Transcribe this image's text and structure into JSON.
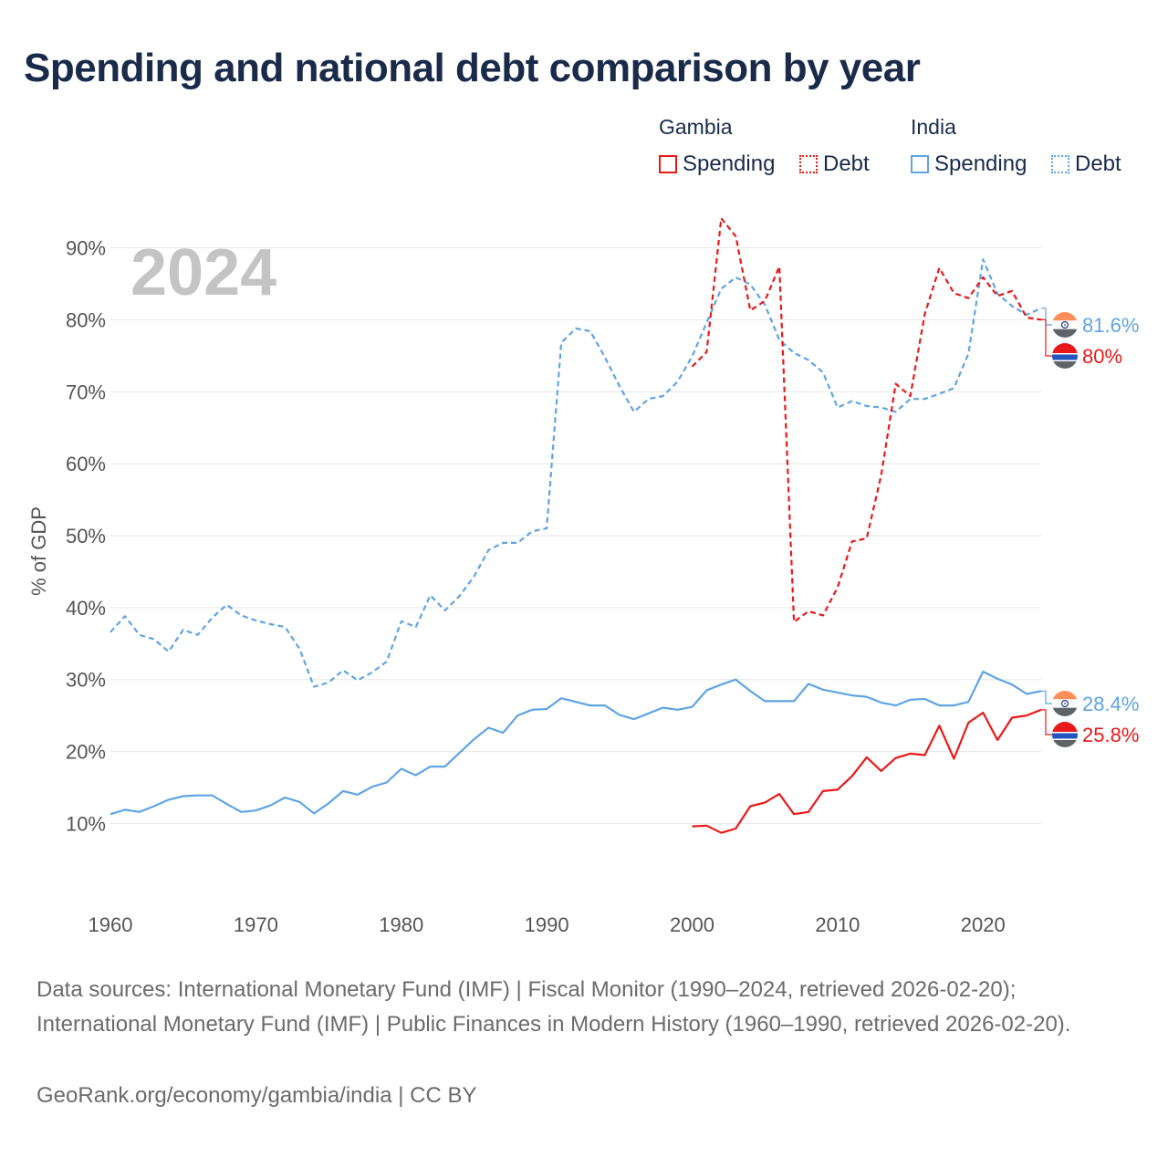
{
  "title": "Spending and national debt comparison by year",
  "legend": {
    "groups": [
      {
        "name": "Gambia",
        "color": "#e8191a",
        "items": [
          "Spending",
          "Debt"
        ]
      },
      {
        "name": "India",
        "color": "#5fa4e3",
        "items": [
          "Spending",
          "Debt"
        ]
      }
    ]
  },
  "year_label": "2024",
  "end_labels": {
    "india_debt": "81.6%",
    "gambia_debt": "80%",
    "india_spending": "28.4%",
    "gambia_spending": "25.8%"
  },
  "footer": {
    "sources": "Data sources: International Monetary Fund (IMF) | Fiscal Monitor (1990–2024, retrieved 2026-02-20); International Monetary Fund (IMF) | Public Finances in Modern History (1960–1990, retrieved 2026-02-20).",
    "attribution": "GeoRank.org/economy/gambia/india | CC BY"
  },
  "colors": {
    "gambia": "#e8191a",
    "india": "#5fa4e3",
    "grid": "#e6e6e6",
    "axis_text": "#555555",
    "year_label": "#c4c4c4"
  },
  "chart_data": {
    "type": "line",
    "title": "Spending and national debt comparison by year",
    "xlabel": "",
    "ylabel": "% of GDP",
    "xlim": [
      1960,
      2024
    ],
    "ylim": [
      2.7,
      94
    ],
    "xticks": [
      1960,
      1970,
      1980,
      1990,
      2000,
      2010,
      2020
    ],
    "yticks": [
      10,
      20,
      30,
      40,
      50,
      60,
      70,
      80,
      90
    ],
    "ytick_labels": [
      "10%",
      "20%",
      "30%",
      "40%",
      "50%",
      "60%",
      "70%",
      "80%",
      "90%"
    ],
    "series": [
      {
        "name": "India Debt",
        "country": "India",
        "kind": "Debt",
        "style": "dashed",
        "x": [
          1960,
          1961,
          1962,
          1963,
          1964,
          1965,
          1966,
          1967,
          1968,
          1969,
          1970,
          1971,
          1972,
          1973,
          1974,
          1975,
          1976,
          1977,
          1978,
          1979,
          1980,
          1981,
          1982,
          1983,
          1984,
          1985,
          1986,
          1987,
          1988,
          1989,
          1990,
          1991,
          1992,
          1993,
          1994,
          1995,
          1996,
          1997,
          1998,
          1999,
          2000,
          2001,
          2002,
          2003,
          2004,
          2005,
          2006,
          2007,
          2008,
          2009,
          2010,
          2011,
          2012,
          2013,
          2014,
          2015,
          2016,
          2017,
          2018,
          2019,
          2020,
          2021,
          2022,
          2023,
          2024
        ],
        "values": [
          36.6,
          38.8,
          36.2,
          35.6,
          33.9,
          36.9,
          36.2,
          38.6,
          40.4,
          38.9,
          38.2,
          37.7,
          37.3,
          34.3,
          29.0,
          29.6,
          31.3,
          29.9,
          31.0,
          32.5,
          38.1,
          37.3,
          41.7,
          39.6,
          41.6,
          44.3,
          48.0,
          49.0,
          49.0,
          50.6,
          51.0,
          76.8,
          78.8,
          78.4,
          74.8,
          70.8,
          67.2,
          69.0,
          69.4,
          71.4,
          74.9,
          79.6,
          84.3,
          85.9,
          84.9,
          82.1,
          77.2,
          75.4,
          74.4,
          72.7,
          67.8,
          68.7,
          68.0,
          67.8,
          67.2,
          69.0,
          69.0,
          69.7,
          70.5,
          75.3,
          88.4,
          83.6,
          81.9,
          80.7,
          81.6
        ]
      },
      {
        "name": "Gambia Debt",
        "country": "Gambia",
        "kind": "Debt",
        "style": "dashed",
        "x": [
          2000,
          2001,
          2002,
          2003,
          2004,
          2005,
          2006,
          2007,
          2008,
          2009,
          2010,
          2011,
          2012,
          2013,
          2014,
          2015,
          2016,
          2017,
          2018,
          2019,
          2020,
          2021,
          2022,
          2023,
          2024
        ],
        "values": [
          73.5,
          75.5,
          94.1,
          91.6,
          81.3,
          82.6,
          87.4,
          38.0,
          39.5,
          38.9,
          42.8,
          49.2,
          49.6,
          58.4,
          71.1,
          69.4,
          80.8,
          87.2,
          83.7,
          83.0,
          85.9,
          83.3,
          84.0,
          80.3,
          80.0
        ]
      },
      {
        "name": "India Spending",
        "country": "India",
        "kind": "Spending",
        "style": "solid",
        "x": [
          1960,
          1961,
          1962,
          1963,
          1964,
          1965,
          1966,
          1967,
          1968,
          1969,
          1970,
          1971,
          1972,
          1973,
          1974,
          1975,
          1976,
          1977,
          1978,
          1979,
          1980,
          1981,
          1982,
          1983,
          1984,
          1985,
          1986,
          1987,
          1988,
          1989,
          1990,
          1991,
          1992,
          1993,
          1994,
          1995,
          1996,
          1997,
          1998,
          1999,
          2000,
          2001,
          2002,
          2003,
          2004,
          2005,
          2006,
          2007,
          2008,
          2009,
          2010,
          2011,
          2012,
          2013,
          2014,
          2015,
          2016,
          2017,
          2018,
          2019,
          2020,
          2021,
          2022,
          2023,
          2024
        ],
        "values": [
          11.3,
          11.9,
          11.6,
          12.4,
          13.3,
          13.8,
          13.9,
          13.9,
          12.7,
          11.6,
          11.8,
          12.5,
          13.6,
          13.0,
          11.4,
          12.8,
          14.5,
          14.0,
          15.1,
          15.7,
          17.6,
          16.7,
          17.9,
          17.9,
          19.8,
          21.7,
          23.3,
          22.6,
          25.0,
          25.8,
          25.9,
          27.4,
          26.9,
          26.4,
          26.4,
          25.1,
          24.5,
          25.3,
          26.1,
          25.8,
          26.2,
          28.5,
          29.3,
          30.0,
          28.4,
          27.0,
          27.0,
          27.0,
          29.4,
          28.6,
          28.2,
          27.8,
          27.6,
          26.8,
          26.4,
          27.2,
          27.3,
          26.4,
          26.4,
          26.9,
          31.1,
          30.1,
          29.3,
          28.0,
          28.4
        ]
      },
      {
        "name": "Gambia Spending",
        "country": "Gambia",
        "kind": "Spending",
        "style": "solid",
        "x": [
          2000,
          2001,
          2002,
          2003,
          2004,
          2005,
          2006,
          2007,
          2008,
          2009,
          2010,
          2011,
          2012,
          2013,
          2014,
          2015,
          2016,
          2017,
          2018,
          2019,
          2020,
          2021,
          2022,
          2023,
          2024
        ],
        "values": [
          9.6,
          9.7,
          8.7,
          9.3,
          12.4,
          12.9,
          14.1,
          11.3,
          11.6,
          14.5,
          14.7,
          16.6,
          19.2,
          17.3,
          19.1,
          19.7,
          19.5,
          23.6,
          19.0,
          24.0,
          25.4,
          21.6,
          24.7,
          25.0,
          25.8
        ]
      }
    ]
  }
}
